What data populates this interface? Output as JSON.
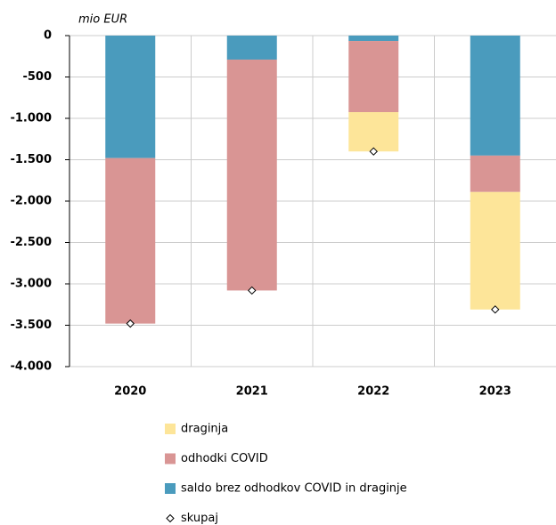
{
  "chart_data": {
    "type": "stacked-bar",
    "unit_label": "mio EUR",
    "categories": [
      "2020",
      "2021",
      "2022",
      "2023"
    ],
    "series": [
      {
        "name": "draginja",
        "color": "#fde599",
        "values": [
          0,
          0,
          -475,
          -1420
        ]
      },
      {
        "name": "odhodki COVID",
        "color": "#d99594",
        "values": [
          -2000,
          -2790,
          -860,
          -440
        ]
      },
      {
        "name": "saldo brez odhodkov COVID in draginje",
        "color": "#4a9bbd",
        "values": [
          -1480,
          -290,
          -65,
          -1450
        ]
      }
    ],
    "total": {
      "name": "skupaj",
      "values": [
        -3480,
        -3080,
        -1400,
        -3310
      ]
    },
    "ylim": [
      -4000,
      0
    ],
    "yticks": [
      0,
      -500,
      {
        "value": -1000,
        "label": "-1.000"
      },
      {
        "value": -1500,
        "label": "-1.500"
      },
      {
        "value": -2000,
        "label": "-2.000"
      },
      {
        "value": -2500,
        "label": "-2.500"
      },
      {
        "value": -3000,
        "label": "-3.000"
      },
      {
        "value": -3500,
        "label": "-3.500"
      },
      {
        "value": -4000,
        "label": "-4.000"
      }
    ],
    "grid": true
  }
}
